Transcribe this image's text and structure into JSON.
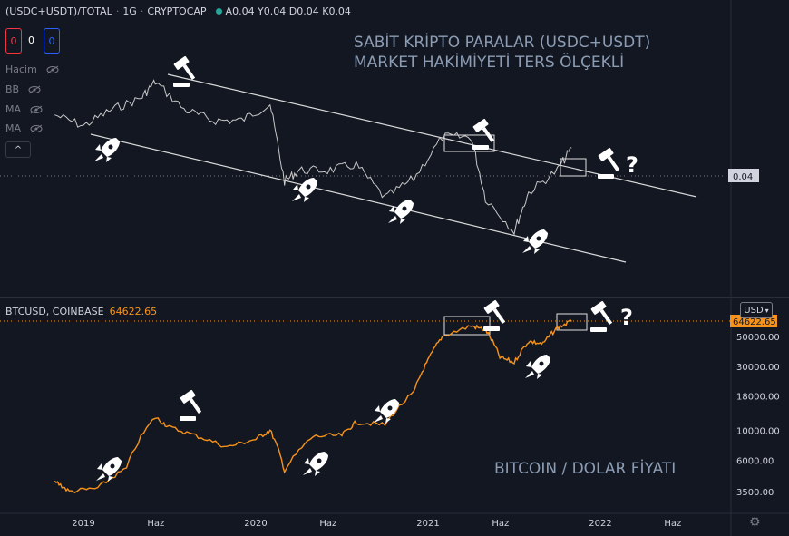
{
  "top_legend": {
    "symbol": "(USDC+USDT)/TOTAL",
    "interval": "1G",
    "source": "CRYPTOCAP",
    "ohlc": "A0.04 Y0.04 D0.04 K0.04"
  },
  "counters": {
    "red": "0",
    "middle": "0",
    "blue": "0"
  },
  "indicators": [
    {
      "label": "Hacim"
    },
    {
      "label": "BB"
    },
    {
      "label": "MA"
    },
    {
      "label": "MA"
    }
  ],
  "collapse_label": "^",
  "top_title_line1": "SABİT KRİPTO PARALAR (USDC+USDT)",
  "top_title_line2": "MARKET HAKİMİYETİ TERS ÖLÇEKLİ",
  "top_price_label": "0.04",
  "question_mark": "?",
  "btc_legend": {
    "symbol": "BTCUSD, COINBASE",
    "value": "64622.65"
  },
  "bottom_title": "BITCOIN / DOLAR FİYATI",
  "usd_select": "USD",
  "btc_price_label": "64622.65",
  "colors": {
    "background": "#131722",
    "usdc_line": "#c8c8c8",
    "btc_line": "#f7931a",
    "channel": "#d9d9d9",
    "text_muted": "#787b86",
    "counter_red": "#f23645",
    "counter_blue": "#2962ff"
  },
  "icons": [
    "gavel-icon",
    "rocket-icon",
    "eye-off-icon",
    "gear-icon",
    "chevron-down-icon"
  ],
  "chart_data": [
    {
      "type": "line",
      "title": "SABİT KRİPTO PARALAR (USDC+USDT) MARKET HAKİMİYETİ TERS ÖLÇEKLİ",
      "y_axis": "inverted",
      "xlabel": "",
      "ylabel": "",
      "x": [
        "2018-11",
        "2019-01",
        "2019-03",
        "2019-05",
        "2019-06",
        "2019-08",
        "2019-10",
        "2019-12",
        "2020-02",
        "2020-03",
        "2020-04",
        "2020-06",
        "2020-08",
        "2020-10",
        "2020-12",
        "2021-02",
        "2021-04",
        "2021-05",
        "2021-07",
        "2021-08",
        "2021-10",
        "2021-11"
      ],
      "series": [
        {
          "values": [
            0.032,
            0.036,
            0.03,
            0.026,
            0.02,
            0.03,
            0.034,
            0.034,
            0.028,
            0.056,
            0.052,
            0.052,
            0.05,
            0.062,
            0.055,
            0.04,
            0.04,
            0.062,
            0.074,
            0.06,
            0.052,
            0.044
          ]
        }
      ],
      "last_value": 0.04,
      "grid": false
    },
    {
      "type": "line",
      "title": "BITCOIN / DOLAR FİYATI",
      "ylog": true,
      "xlabel": "",
      "ylabel": "",
      "x_ticks": [
        "2019",
        "Haz",
        "2020",
        "Haz",
        "2021",
        "Haz",
        "2022",
        "Haz"
      ],
      "y_ticks": [
        "3500.00",
        "6000.00",
        "10000.00",
        "18000.00",
        "30000.00",
        "50000.00"
      ],
      "x": [
        "2018-11",
        "2018-12",
        "2019-02",
        "2019-04",
        "2019-06",
        "2019-07",
        "2019-09",
        "2019-11",
        "2020-01",
        "2020-02",
        "2020-03",
        "2020-05",
        "2020-07",
        "2020-08",
        "2020-10",
        "2020-12",
        "2021-01",
        "2021-02",
        "2021-04",
        "2021-05",
        "2021-06",
        "2021-07",
        "2021-08",
        "2021-09",
        "2021-10",
        "2021-11"
      ],
      "series": [
        {
          "name": "BTCUSD",
          "values": [
            4200,
            3500,
            3700,
            5200,
            12500,
            10500,
            9000,
            7500,
            8600,
            10000,
            5000,
            9000,
            9200,
            11500,
            11000,
            19000,
            33000,
            50000,
            60000,
            56000,
            35000,
            32000,
            46000,
            44000,
            58000,
            64622.65
          ]
        }
      ],
      "last_value": 64622.65,
      "grid": false
    }
  ]
}
